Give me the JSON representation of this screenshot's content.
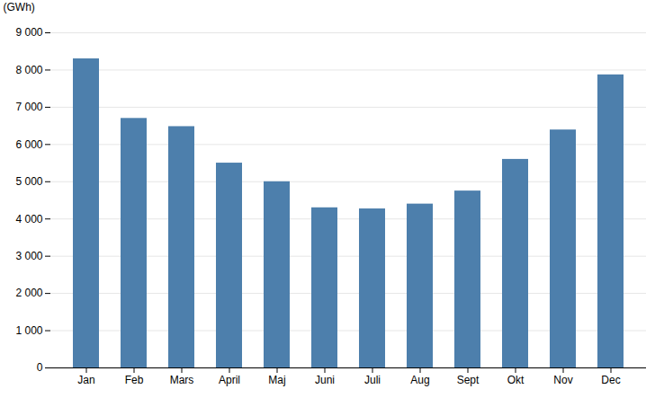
{
  "chart_data": {
    "type": "bar",
    "ylabel": "(GWh)",
    "categories": [
      "Jan",
      "Feb",
      "Mars",
      "April",
      "Maj",
      "Juni",
      "Juli",
      "Aug",
      "Sept",
      "Okt",
      "Nov",
      "Dec"
    ],
    "values": [
      8300,
      6700,
      6480,
      5500,
      5000,
      4300,
      4270,
      4400,
      4750,
      5600,
      6390,
      7870
    ],
    "color": "#4d7fac",
    "ylim": [
      0,
      9000
    ],
    "yticks": [
      0,
      {
        "value": 1000,
        "label": "1 000"
      },
      {
        "value": 2000,
        "label": "2 000"
      },
      {
        "value": 3000,
        "label": "3 000"
      },
      {
        "value": 4000,
        "label": "4 000"
      },
      {
        "value": 5000,
        "label": "5 000"
      },
      {
        "value": 6000,
        "label": "6 000"
      },
      {
        "value": 7000,
        "label": "7 000"
      },
      {
        "value": 8000,
        "label": "8 000"
      },
      {
        "value": 9000,
        "label": "9 000"
      }
    ],
    "grid": true
  }
}
